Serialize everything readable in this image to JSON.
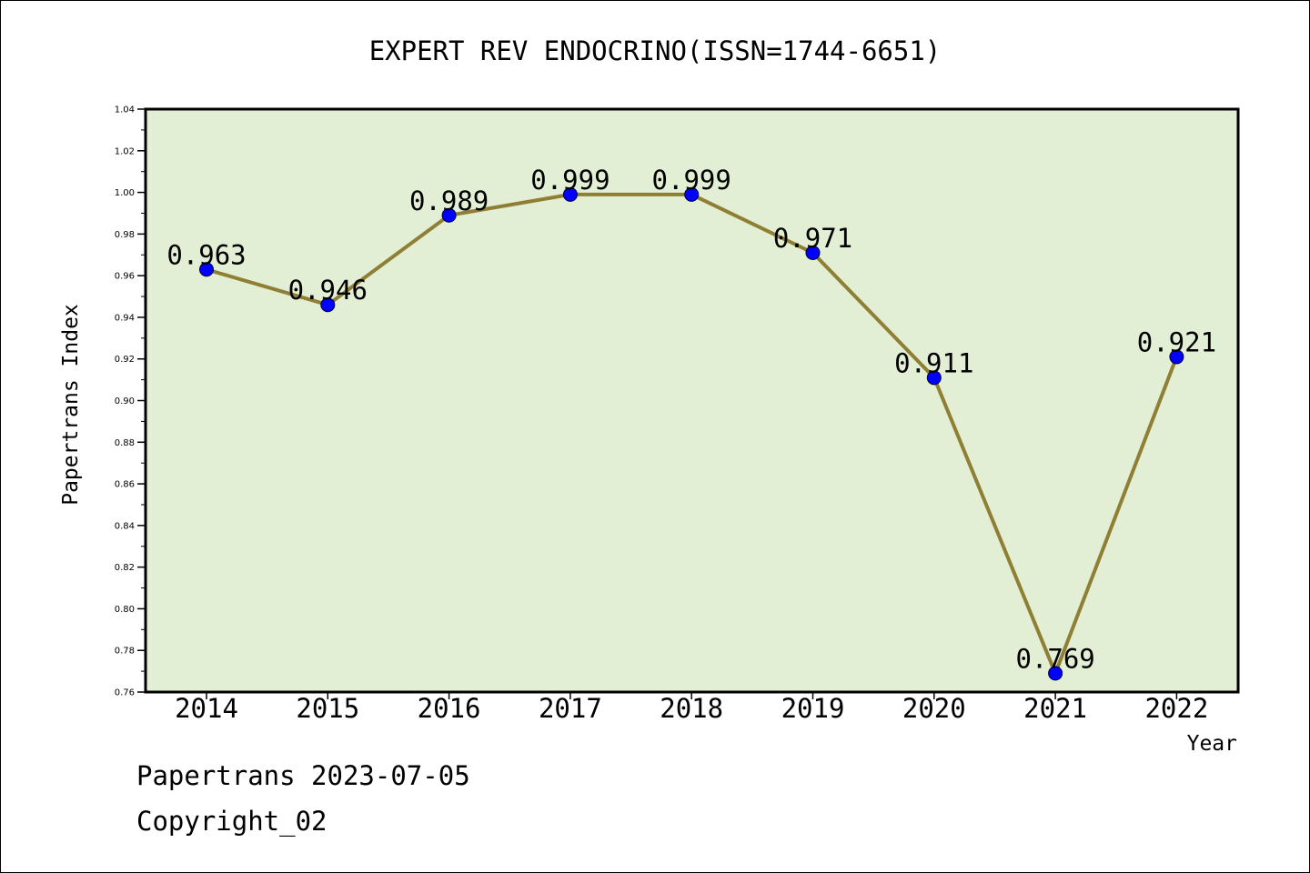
{
  "chart_data": {
    "type": "line",
    "title": "EXPERT REV ENDOCRINO(ISSN=1744-6651)",
    "xlabel": "Year",
    "ylabel": "Papertrans Index",
    "categories": [
      "2014",
      "2015",
      "2016",
      "2017",
      "2018",
      "2019",
      "2020",
      "2021",
      "2022"
    ],
    "series": [
      {
        "values": [
          0.963,
          0.946,
          0.989,
          0.999,
          0.999,
          0.971,
          0.911,
          0.769,
          0.921
        ],
        "data_labels": [
          "0.963",
          "0.946",
          "0.989",
          "0.999",
          "0.999",
          "0.971",
          "0.911",
          "0.769",
          "0.921"
        ]
      }
    ],
    "ylim": [
      0.76,
      1.04
    ],
    "yticks": [
      "0.76",
      "0.78",
      "0.80",
      "0.82",
      "0.84",
      "0.86",
      "0.88",
      "0.90",
      "0.92",
      "0.94",
      "0.96",
      "0.98",
      "1.00",
      "1.02",
      "1.04"
    ],
    "grid": false,
    "legend": "none"
  },
  "colors": {
    "plot_background": "#e2efd4",
    "line": "#8f7f35",
    "marker": "#0000ff",
    "axis": "#000000"
  },
  "footer": {
    "line1": "Papertrans 2023-07-05",
    "line2": "Copyright_02"
  }
}
